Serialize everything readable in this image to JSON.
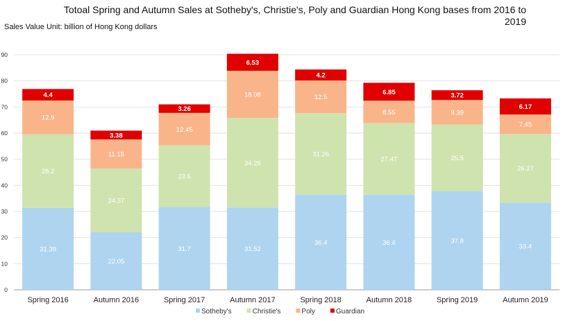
{
  "chart_data": {
    "type": "bar",
    "stacked": true,
    "title": "Totoal Spring and Autumn Sales at Sotheby's, Christie's, Poly and Guardian Hong Kong bases from 2016 to 2019",
    "subtitle": "Sales Value Unit: billion of Hong Kong dollars",
    "xlabel": "",
    "ylabel": "",
    "ylim": [
      0,
      90
    ],
    "yticks": [
      0,
      10,
      20,
      30,
      40,
      50,
      60,
      70,
      80,
      90
    ],
    "grid": true,
    "legend_position": "bottom",
    "categories": [
      "Spring 2016",
      "Autumn 2016",
      "Spring 2017",
      "Autumn 2017",
      "Spring 2018",
      "Autumn 2018",
      "Spring 2019",
      "Autumn 2019"
    ],
    "series": [
      {
        "name": "Sotheby's",
        "color": "#aed4f0",
        "label_color": "#ffffff",
        "values": [
          31.39,
          22.05,
          31.7,
          31.52,
          36.4,
          36.4,
          37.8,
          33.4
        ]
      },
      {
        "name": "Christie's",
        "color": "#cfe3ae",
        "label_color": "#ffffff",
        "values": [
          28.2,
          24.37,
          23.6,
          34.26,
          31.26,
          27.47,
          25.5,
          26.27
        ]
      },
      {
        "name": "Poly",
        "color": "#f9b589",
        "label_color": "#ffffff",
        "values": [
          12.9,
          11.15,
          12.45,
          18.08,
          12.5,
          8.55,
          9.39,
          7.45
        ]
      },
      {
        "name": "Guardian",
        "color": "#e00000",
        "label_color": "#ffffff",
        "values": [
          4.4,
          3.38,
          3.26,
          6.53,
          4.2,
          6.85,
          3.72,
          6.17
        ]
      }
    ]
  }
}
